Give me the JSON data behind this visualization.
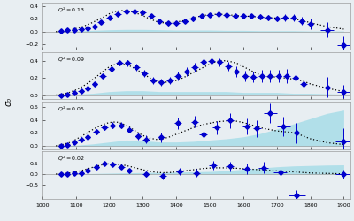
{
  "panels": [
    {
      "label": "Q^2 = 0.13",
      "ylim": [
        -0.28,
        0.46
      ],
      "yticks": [
        -0.2,
        0.0,
        0.2,
        0.4
      ],
      "data_x": [
        1055,
        1075,
        1095,
        1115,
        1135,
        1155,
        1175,
        1200,
        1225,
        1250,
        1275,
        1300,
        1325,
        1350,
        1375,
        1400,
        1425,
        1450,
        1475,
        1500,
        1525,
        1550,
        1575,
        1600,
        1625,
        1650,
        1675,
        1700,
        1725,
        1750,
        1775,
        1800,
        1850,
        1900
      ],
      "data_y": [
        0.01,
        0.02,
        0.03,
        0.04,
        0.05,
        0.08,
        0.15,
        0.22,
        0.28,
        0.31,
        0.32,
        0.3,
        0.24,
        0.17,
        0.13,
        0.13,
        0.16,
        0.2,
        0.24,
        0.26,
        0.27,
        0.26,
        0.25,
        0.24,
        0.24,
        0.23,
        0.22,
        0.21,
        0.22,
        0.22,
        0.17,
        0.12,
        0.03,
        -0.21
      ],
      "err_x": [
        8,
        8,
        8,
        8,
        8,
        8,
        10,
        10,
        10,
        10,
        10,
        10,
        10,
        10,
        10,
        10,
        10,
        10,
        10,
        10,
        10,
        10,
        10,
        10,
        10,
        10,
        10,
        10,
        10,
        10,
        10,
        10,
        20,
        20
      ],
      "err_y": [
        0.015,
        0.015,
        0.015,
        0.015,
        0.015,
        0.015,
        0.02,
        0.025,
        0.025,
        0.025,
        0.025,
        0.025,
        0.025,
        0.025,
        0.03,
        0.03,
        0.03,
        0.03,
        0.03,
        0.03,
        0.03,
        0.03,
        0.03,
        0.03,
        0.03,
        0.04,
        0.04,
        0.04,
        0.05,
        0.055,
        0.065,
        0.085,
        0.12,
        0.14
      ],
      "dot_x": [
        1040,
        1060,
        1080,
        1100,
        1120,
        1140,
        1160,
        1180,
        1200,
        1220,
        1240,
        1260,
        1280,
        1300,
        1320,
        1340,
        1360,
        1380,
        1400,
        1420,
        1440,
        1460,
        1480,
        1500,
        1520,
        1540,
        1560,
        1580,
        1600,
        1620,
        1640,
        1660,
        1680,
        1700,
        1720,
        1740,
        1760,
        1780,
        1800,
        1850,
        1900
      ],
      "dot_y": [
        0.0,
        0.01,
        0.02,
        0.05,
        0.08,
        0.12,
        0.17,
        0.22,
        0.28,
        0.32,
        0.33,
        0.32,
        0.29,
        0.25,
        0.2,
        0.16,
        0.14,
        0.14,
        0.15,
        0.17,
        0.2,
        0.23,
        0.25,
        0.27,
        0.27,
        0.27,
        0.26,
        0.25,
        0.24,
        0.24,
        0.23,
        0.22,
        0.22,
        0.21,
        0.21,
        0.2,
        0.19,
        0.17,
        0.14,
        0.08,
        0.04
      ],
      "fill_x": [
        1040,
        1100,
        1150,
        1200,
        1250,
        1300,
        1350,
        1400,
        1450,
        1500,
        1550,
        1600,
        1650,
        1700,
        1750,
        1800,
        1900
      ],
      "fill_y": [
        0.0,
        0.01,
        0.02,
        0.03,
        0.035,
        0.035,
        0.03,
        0.025,
        0.025,
        0.025,
        0.02,
        0.02,
        0.015,
        0.015,
        0.015,
        0.01,
        0.01
      ]
    },
    {
      "label": "Q^2 = 0.09",
      "ylim": [
        -0.05,
        0.5
      ],
      "yticks": [
        0.0,
        0.2,
        0.4
      ],
      "data_x": [
        1055,
        1075,
        1095,
        1115,
        1135,
        1155,
        1180,
        1205,
        1230,
        1255,
        1280,
        1305,
        1330,
        1355,
        1380,
        1405,
        1430,
        1455,
        1480,
        1505,
        1530,
        1555,
        1580,
        1605,
        1630,
        1655,
        1680,
        1705,
        1730,
        1755,
        1780,
        1850,
        1900
      ],
      "data_y": [
        0.0,
        0.01,
        0.03,
        0.05,
        0.08,
        0.13,
        0.22,
        0.3,
        0.37,
        0.37,
        0.32,
        0.25,
        0.17,
        0.15,
        0.17,
        0.22,
        0.27,
        0.32,
        0.38,
        0.4,
        0.38,
        0.33,
        0.27,
        0.22,
        0.21,
        0.22,
        0.22,
        0.22,
        0.22,
        0.2,
        0.13,
        0.09,
        0.04
      ],
      "err_x": [
        8,
        8,
        8,
        8,
        8,
        8,
        10,
        10,
        10,
        10,
        10,
        10,
        10,
        10,
        10,
        10,
        10,
        10,
        10,
        10,
        10,
        10,
        10,
        10,
        10,
        10,
        10,
        10,
        10,
        10,
        10,
        20,
        20
      ],
      "err_y": [
        0.02,
        0.02,
        0.02,
        0.02,
        0.02,
        0.02,
        0.02,
        0.03,
        0.03,
        0.04,
        0.04,
        0.04,
        0.04,
        0.04,
        0.04,
        0.05,
        0.05,
        0.05,
        0.05,
        0.05,
        0.05,
        0.05,
        0.06,
        0.06,
        0.06,
        0.07,
        0.07,
        0.07,
        0.08,
        0.09,
        0.12,
        0.12,
        0.08
      ],
      "dot_x": [
        1040,
        1060,
        1080,
        1100,
        1120,
        1140,
        1160,
        1180,
        1200,
        1220,
        1240,
        1260,
        1280,
        1300,
        1320,
        1340,
        1360,
        1380,
        1400,
        1420,
        1440,
        1460,
        1480,
        1500,
        1520,
        1540,
        1560,
        1580,
        1600,
        1620,
        1640,
        1660,
        1680,
        1700,
        1720,
        1740,
        1760,
        1780,
        1800,
        1850,
        1900
      ],
      "dot_y": [
        0.0,
        0.01,
        0.03,
        0.06,
        0.1,
        0.15,
        0.21,
        0.27,
        0.33,
        0.36,
        0.36,
        0.34,
        0.3,
        0.25,
        0.2,
        0.16,
        0.15,
        0.15,
        0.17,
        0.2,
        0.24,
        0.28,
        0.32,
        0.36,
        0.39,
        0.4,
        0.39,
        0.37,
        0.33,
        0.29,
        0.25,
        0.22,
        0.21,
        0.21,
        0.2,
        0.19,
        0.18,
        0.16,
        0.13,
        0.08,
        0.04
      ],
      "fill_x": [
        1040,
        1100,
        1150,
        1200,
        1250,
        1300,
        1350,
        1400,
        1450,
        1500,
        1550,
        1600,
        1650,
        1700,
        1750,
        1800,
        1900
      ],
      "fill_y": [
        0.0,
        0.01,
        0.02,
        0.04,
        0.05,
        0.05,
        0.04,
        0.04,
        0.04,
        0.04,
        0.04,
        0.03,
        0.03,
        0.03,
        0.02,
        0.02,
        0.01
      ]
    },
    {
      "label": "Q^2 = 0.05",
      "ylim": [
        -0.05,
        0.68
      ],
      "yticks": [
        0.0,
        0.2,
        0.4,
        0.6
      ],
      "data_x": [
        1055,
        1075,
        1095,
        1115,
        1135,
        1160,
        1185,
        1210,
        1235,
        1260,
        1285,
        1310,
        1355,
        1405,
        1455,
        1480,
        1520,
        1560,
        1610,
        1640,
        1680,
        1720,
        1760,
        1900
      ],
      "data_y": [
        0.0,
        0.02,
        0.05,
        0.1,
        0.14,
        0.22,
        0.28,
        0.32,
        0.32,
        0.25,
        0.15,
        0.1,
        0.13,
        0.35,
        0.37,
        0.18,
        0.28,
        0.39,
        0.3,
        0.27,
        0.5,
        0.3,
        0.2,
        0.07
      ],
      "err_x": [
        8,
        8,
        8,
        8,
        8,
        10,
        10,
        10,
        10,
        10,
        10,
        10,
        10,
        10,
        10,
        12,
        12,
        12,
        12,
        12,
        20,
        20,
        20,
        25
      ],
      "err_y": [
        0.02,
        0.02,
        0.02,
        0.03,
        0.03,
        0.04,
        0.04,
        0.05,
        0.05,
        0.05,
        0.05,
        0.06,
        0.07,
        0.09,
        0.09,
        0.1,
        0.1,
        0.12,
        0.12,
        0.13,
        0.15,
        0.15,
        0.16,
        0.2
      ],
      "dot_x": [
        1040,
        1060,
        1080,
        1100,
        1120,
        1140,
        1160,
        1180,
        1200,
        1220,
        1240,
        1260,
        1280,
        1300,
        1320,
        1340,
        1360,
        1380,
        1400,
        1420,
        1440,
        1460,
        1480,
        1500,
        1520,
        1540,
        1560,
        1580,
        1600,
        1620,
        1640,
        1660,
        1680,
        1700,
        1720,
        1740,
        1760,
        1780,
        1800,
        1850,
        1900
      ],
      "dot_y": [
        0.0,
        0.02,
        0.05,
        0.1,
        0.16,
        0.22,
        0.28,
        0.33,
        0.36,
        0.37,
        0.34,
        0.29,
        0.22,
        0.16,
        0.12,
        0.1,
        0.11,
        0.14,
        0.18,
        0.22,
        0.26,
        0.3,
        0.33,
        0.35,
        0.37,
        0.38,
        0.39,
        0.38,
        0.36,
        0.33,
        0.3,
        0.27,
        0.25,
        0.23,
        0.22,
        0.21,
        0.19,
        0.15,
        0.11,
        0.05,
        0.02
      ],
      "fill_x": [
        1040,
        1100,
        1150,
        1200,
        1250,
        1300,
        1350,
        1400,
        1450,
        1500,
        1550,
        1600,
        1650,
        1700,
        1750,
        1800,
        1850,
        1900
      ],
      "fill_y": [
        0.0,
        0.01,
        0.03,
        0.06,
        0.09,
        0.08,
        0.06,
        0.06,
        0.07,
        0.09,
        0.11,
        0.14,
        0.19,
        0.26,
        0.34,
        0.42,
        0.5,
        0.55
      ]
    },
    {
      "label": "Q^2 = 0.02",
      "ylim": [
        -1.15,
        1.05
      ],
      "yticks": [
        -0.5,
        0.0,
        0.5
      ],
      "data_x": [
        1055,
        1075,
        1095,
        1115,
        1135,
        1160,
        1185,
        1210,
        1235,
        1260,
        1310,
        1360,
        1410,
        1460,
        1510,
        1560,
        1610,
        1660,
        1710,
        1760,
        1900
      ],
      "data_y": [
        0.0,
        0.01,
        0.03,
        0.06,
        0.16,
        0.33,
        0.5,
        0.47,
        0.33,
        0.15,
        0.0,
        -0.1,
        0.12,
        0.06,
        0.4,
        0.35,
        0.25,
        0.3,
        0.08,
        -1.0,
        0.0
      ],
      "err_x": [
        8,
        8,
        8,
        8,
        8,
        10,
        10,
        10,
        10,
        10,
        10,
        10,
        10,
        10,
        12,
        12,
        12,
        15,
        20,
        25,
        25
      ],
      "err_y": [
        0.03,
        0.03,
        0.04,
        0.05,
        0.06,
        0.07,
        0.08,
        0.09,
        0.1,
        0.11,
        0.12,
        0.14,
        0.16,
        0.18,
        0.2,
        0.22,
        0.24,
        0.28,
        0.35,
        0.25,
        0.2
      ],
      "dot_x": [
        1040,
        1060,
        1080,
        1100,
        1120,
        1140,
        1160,
        1180,
        1200,
        1220,
        1240,
        1260,
        1280,
        1300,
        1320,
        1340,
        1360,
        1380,
        1400,
        1420,
        1440,
        1460,
        1480,
        1500,
        1520,
        1540,
        1560,
        1580,
        1600,
        1620,
        1640,
        1660,
        1680,
        1700,
        1720,
        1740,
        1760,
        1780,
        1800,
        1850,
        1900
      ],
      "dot_y": [
        0.0,
        0.02,
        0.05,
        0.1,
        0.18,
        0.27,
        0.36,
        0.44,
        0.48,
        0.47,
        0.43,
        0.36,
        0.28,
        0.2,
        0.13,
        0.08,
        0.06,
        0.07,
        0.1,
        0.14,
        0.18,
        0.22,
        0.26,
        0.28,
        0.29,
        0.29,
        0.28,
        0.27,
        0.25,
        0.23,
        0.21,
        0.19,
        0.17,
        0.15,
        0.13,
        0.11,
        0.09,
        0.07,
        0.05,
        0.03,
        0.01
      ],
      "fill_x": [
        1040,
        1100,
        1200,
        1300,
        1400,
        1500,
        1550,
        1600,
        1650,
        1700,
        1750,
        1800,
        1850,
        1900
      ],
      "fill_y": [
        0.0,
        0.01,
        0.04,
        0.07,
        0.09,
        0.12,
        0.16,
        0.22,
        0.28,
        0.34,
        0.38,
        0.4,
        0.42,
        0.43
      ]
    }
  ],
  "xlim": [
    1000,
    1920
  ],
  "xticks": [
    1000,
    1100,
    1200,
    1300,
    1400,
    1500,
    1600,
    1700,
    1800,
    1900
  ],
  "xlabel": "",
  "ylabel": "σ₀",
  "marker_color": "#0000CD",
  "fill_color": "#a8dde8",
  "dot_color": "#000000",
  "bg_color": "#e8eef2"
}
